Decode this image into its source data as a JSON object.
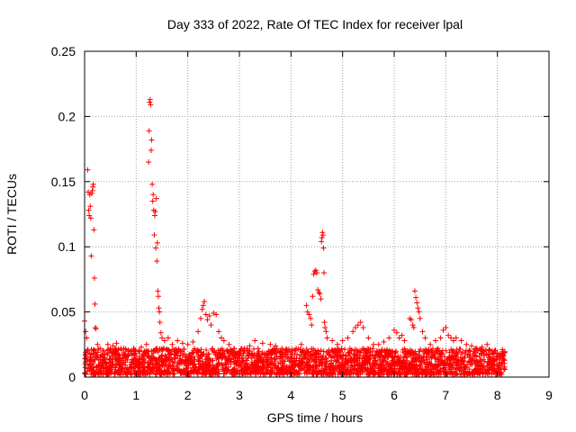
{
  "chart_data": {
    "type": "scatter",
    "title": "Day 333 of 2022, Rate Of TEC Index for receiver lpal",
    "xlabel": "GPS time / hours",
    "ylabel": "ROTI / TECUs",
    "xlim": [
      0,
      9
    ],
    "ylim": [
      0,
      0.25
    ],
    "xticks": [
      "0",
      "1",
      "2",
      "3",
      "4",
      "5",
      "6",
      "7",
      "8",
      "9"
    ],
    "yticks": [
      "0",
      "0.05",
      "0.1",
      "0.15",
      "0.2",
      "0.25"
    ],
    "grid": true,
    "marker": "plus",
    "color": "#ff0000",
    "baseline": {
      "x_range": [
        0,
        8.15
      ],
      "y_min": 0.002,
      "y_max": 0.022
    },
    "points": [
      [
        0.0,
        0.043
      ],
      [
        0.02,
        0.035
      ],
      [
        0.04,
        0.03
      ],
      [
        0.05,
        0.02
      ],
      [
        0.06,
        0.159
      ],
      [
        0.07,
        0.142
      ],
      [
        0.08,
        0.128
      ],
      [
        0.09,
        0.124
      ],
      [
        0.1,
        0.14
      ],
      [
        0.11,
        0.131
      ],
      [
        0.12,
        0.122
      ],
      [
        0.13,
        0.093
      ],
      [
        0.14,
        0.141
      ],
      [
        0.15,
        0.143
      ],
      [
        0.16,
        0.146
      ],
      [
        0.17,
        0.148
      ],
      [
        0.18,
        0.113
      ],
      [
        0.19,
        0.076
      ],
      [
        0.2,
        0.056
      ],
      [
        0.21,
        0.038
      ],
      [
        0.22,
        0.037
      ],
      [
        0.25,
        0.025
      ],
      [
        0.3,
        0.022
      ],
      [
        0.35,
        0.02
      ],
      [
        0.45,
        0.025
      ],
      [
        0.55,
        0.024
      ],
      [
        0.62,
        0.026
      ],
      [
        0.7,
        0.022
      ],
      [
        0.85,
        0.02
      ],
      [
        0.95,
        0.022
      ],
      [
        1.05,
        0.02
      ],
      [
        1.1,
        0.023
      ],
      [
        1.2,
        0.025
      ],
      [
        1.24,
        0.165
      ],
      [
        1.25,
        0.189
      ],
      [
        1.26,
        0.211
      ],
      [
        1.27,
        0.213
      ],
      [
        1.28,
        0.209
      ],
      [
        1.29,
        0.174
      ],
      [
        1.3,
        0.182
      ],
      [
        1.31,
        0.148
      ],
      [
        1.32,
        0.135
      ],
      [
        1.33,
        0.14
      ],
      [
        1.34,
        0.128
      ],
      [
        1.35,
        0.109
      ],
      [
        1.36,
        0.124
      ],
      [
        1.37,
        0.127
      ],
      [
        1.38,
        0.099
      ],
      [
        1.39,
        0.137
      ],
      [
        1.4,
        0.089
      ],
      [
        1.41,
        0.103
      ],
      [
        1.42,
        0.066
      ],
      [
        1.43,
        0.062
      ],
      [
        1.44,
        0.053
      ],
      [
        1.45,
        0.05
      ],
      [
        1.46,
        0.042
      ],
      [
        1.48,
        0.034
      ],
      [
        1.5,
        0.03
      ],
      [
        1.55,
        0.028
      ],
      [
        1.62,
        0.03
      ],
      [
        1.7,
        0.025
      ],
      [
        1.8,
        0.028
      ],
      [
        1.9,
        0.026
      ],
      [
        2.0,
        0.025
      ],
      [
        2.1,
        0.027
      ],
      [
        2.2,
        0.035
      ],
      [
        2.25,
        0.045
      ],
      [
        2.28,
        0.052
      ],
      [
        2.3,
        0.055
      ],
      [
        2.32,
        0.058
      ],
      [
        2.35,
        0.048
      ],
      [
        2.38,
        0.044
      ],
      [
        2.42,
        0.047
      ],
      [
        2.45,
        0.04
      ],
      [
        2.5,
        0.049
      ],
      [
        2.55,
        0.048
      ],
      [
        2.6,
        0.035
      ],
      [
        2.65,
        0.03
      ],
      [
        2.7,
        0.028
      ],
      [
        2.8,
        0.025
      ],
      [
        2.9,
        0.022
      ],
      [
        3.0,
        0.02
      ],
      [
        3.1,
        0.022
      ],
      [
        3.2,
        0.024
      ],
      [
        3.3,
        0.028
      ],
      [
        3.45,
        0.026
      ],
      [
        3.6,
        0.025
      ],
      [
        3.7,
        0.024
      ],
      [
        3.8,
        0.02
      ],
      [
        3.9,
        0.021
      ],
      [
        4.0,
        0.02
      ],
      [
        4.1,
        0.022
      ],
      [
        4.2,
        0.025
      ],
      [
        4.3,
        0.055
      ],
      [
        4.32,
        0.05
      ],
      [
        4.35,
        0.048
      ],
      [
        4.38,
        0.045
      ],
      [
        4.4,
        0.04
      ],
      [
        4.42,
        0.062
      ],
      [
        4.44,
        0.079
      ],
      [
        4.46,
        0.081
      ],
      [
        4.48,
        0.082
      ],
      [
        4.5,
        0.08
      ],
      [
        4.52,
        0.067
      ],
      [
        4.54,
        0.065
      ],
      [
        4.56,
        0.064
      ],
      [
        4.58,
        0.06
      ],
      [
        4.59,
        0.104
      ],
      [
        4.6,
        0.107
      ],
      [
        4.61,
        0.111
      ],
      [
        4.62,
        0.109
      ],
      [
        4.63,
        0.099
      ],
      [
        4.64,
        0.08
      ],
      [
        4.65,
        0.042
      ],
      [
        4.66,
        0.038
      ],
      [
        4.68,
        0.035
      ],
      [
        4.7,
        0.03
      ],
      [
        4.8,
        0.028
      ],
      [
        4.9,
        0.025
      ],
      [
        5.0,
        0.028
      ],
      [
        5.1,
        0.03
      ],
      [
        5.2,
        0.035
      ],
      [
        5.25,
        0.038
      ],
      [
        5.3,
        0.04
      ],
      [
        5.35,
        0.042
      ],
      [
        5.4,
        0.038
      ],
      [
        5.5,
        0.03
      ],
      [
        5.6,
        0.025
      ],
      [
        5.7,
        0.025
      ],
      [
        5.8,
        0.027
      ],
      [
        5.9,
        0.03
      ],
      [
        6.0,
        0.036
      ],
      [
        6.05,
        0.034
      ],
      [
        6.1,
        0.03
      ],
      [
        6.15,
        0.032
      ],
      [
        6.2,
        0.028
      ],
      [
        6.3,
        0.045
      ],
      [
        6.33,
        0.044
      ],
      [
        6.36,
        0.04
      ],
      [
        6.38,
        0.038
      ],
      [
        6.4,
        0.066
      ],
      [
        6.42,
        0.061
      ],
      [
        6.44,
        0.057
      ],
      [
        6.46,
        0.053
      ],
      [
        6.48,
        0.05
      ],
      [
        6.5,
        0.045
      ],
      [
        6.55,
        0.035
      ],
      [
        6.6,
        0.03
      ],
      [
        6.7,
        0.025
      ],
      [
        6.8,
        0.028
      ],
      [
        6.9,
        0.03
      ],
      [
        6.95,
        0.036
      ],
      [
        7.0,
        0.038
      ],
      [
        7.05,
        0.032
      ],
      [
        7.1,
        0.03
      ],
      [
        7.15,
        0.028
      ],
      [
        7.2,
        0.03
      ],
      [
        7.3,
        0.028
      ],
      [
        7.4,
        0.025
      ],
      [
        7.5,
        0.024
      ],
      [
        7.6,
        0.022
      ],
      [
        7.7,
        0.023
      ],
      [
        7.8,
        0.025
      ],
      [
        7.9,
        0.02
      ],
      [
        8.0,
        0.018
      ],
      [
        8.1,
        0.015
      ]
    ]
  }
}
